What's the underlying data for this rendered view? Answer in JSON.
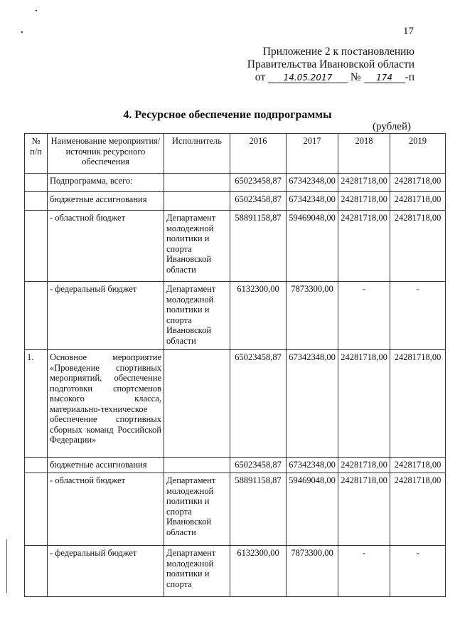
{
  "page_number": "17",
  "appendix": {
    "line1": "Приложение 2 к постановлению",
    "line2": "Правительства Ивановской области",
    "from_label": "от",
    "date": "14.05.2017",
    "number_label": "№",
    "number": "174",
    "suffix": "-п"
  },
  "title": "4. Ресурсное обеспечение подпрограммы",
  "units": "(рублей)",
  "table": {
    "headers": [
      "№ п/п",
      "Наименование мероприятия/источник ресурсного обеспечения",
      "Исполнитель",
      "2016",
      "2017",
      "2018",
      "2019"
    ],
    "rows": [
      {
        "no": "",
        "name": "Подпрограмма, всего:",
        "executor": "",
        "y2016": "65023458,87",
        "y2017": "67342348,00",
        "y2018": "24281718,00",
        "y2019": "24281718,00"
      },
      {
        "no": "",
        "name": "бюджетные ассигнования",
        "executor": "",
        "y2016": "65023458,87",
        "y2017": "67342348,00",
        "y2018": "24281718,00",
        "y2019": "24281718,00"
      },
      {
        "no": "",
        "name": "- областной бюджет",
        "executor": "Департамент молодежной политики и спорта Ивановской области",
        "y2016": "58891158,87",
        "y2017": "59469048,00",
        "y2018": "24281718,00",
        "y2019": "24281718,00"
      },
      {
        "no": "",
        "name": "- федеральный бюджет",
        "executor": "Департамент молодежной политики и спорта Ивановской области",
        "y2016": "6132300,00",
        "y2017": "7873300,00",
        "y2018": "-",
        "y2019": "-"
      },
      {
        "no": "1.",
        "name": "Основное мероприятие «Проведение спортивных мероприятий, обеспечение подготовки спортсменов высокого класса, материально-техническое обеспечение спортивных сборных команд Российской Федерации»",
        "executor": "",
        "y2016": "65023458,87",
        "y2017": "67342348,00",
        "y2018": "24281718,00",
        "y2019": "24281718,00"
      },
      {
        "no": "",
        "name": "бюджетные ассигнования",
        "executor": "",
        "y2016": "65023458,87",
        "y2017": "67342348,00",
        "y2018": "24281718,00",
        "y2019": "24281718,00"
      },
      {
        "no": "",
        "name": "- областной бюджет",
        "executor": "Департамент молодежной политики и спорта Ивановской области",
        "y2016": "58891158,87",
        "y2017": "59469048,00",
        "y2018": "24281718,00",
        "y2019": "24281718,00"
      },
      {
        "no": "",
        "name": "- федеральный бюджет",
        "executor": "Департамент молодежной политики и спорта",
        "y2016": "6132300,00",
        "y2017": "7873300,00",
        "y2018": "-",
        "y2019": "-"
      }
    ]
  }
}
